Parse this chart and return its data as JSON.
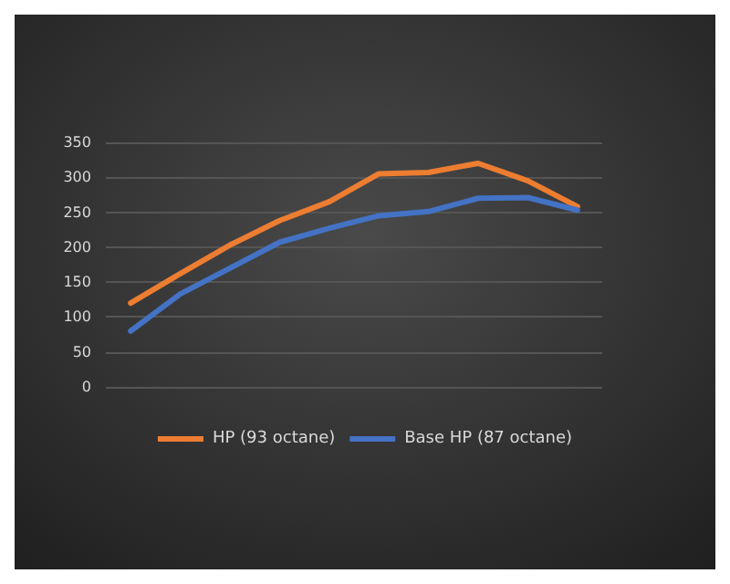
{
  "chart_data": {
    "type": "line",
    "categories": [
      null,
      null,
      null,
      null,
      null,
      null,
      null,
      null,
      null,
      null
    ],
    "series": [
      {
        "name": "HP (93 octane)",
        "color": "#ed7d31",
        "values": [
          120,
          162,
          203,
          238,
          265,
          305,
          307,
          320,
          295,
          258
        ]
      },
      {
        "name": "Base HP (87 octane)",
        "color": "#4472c4",
        "values": [
          80,
          133,
          170,
          207,
          227,
          245,
          251,
          270,
          271,
          253
        ]
      }
    ],
    "ylim": [
      0,
      350
    ],
    "yticks": [
      0,
      50,
      100,
      150,
      200,
      250,
      300,
      350
    ],
    "grid": "y",
    "legend": "bottom",
    "marker": "none",
    "line_style": "solid"
  }
}
